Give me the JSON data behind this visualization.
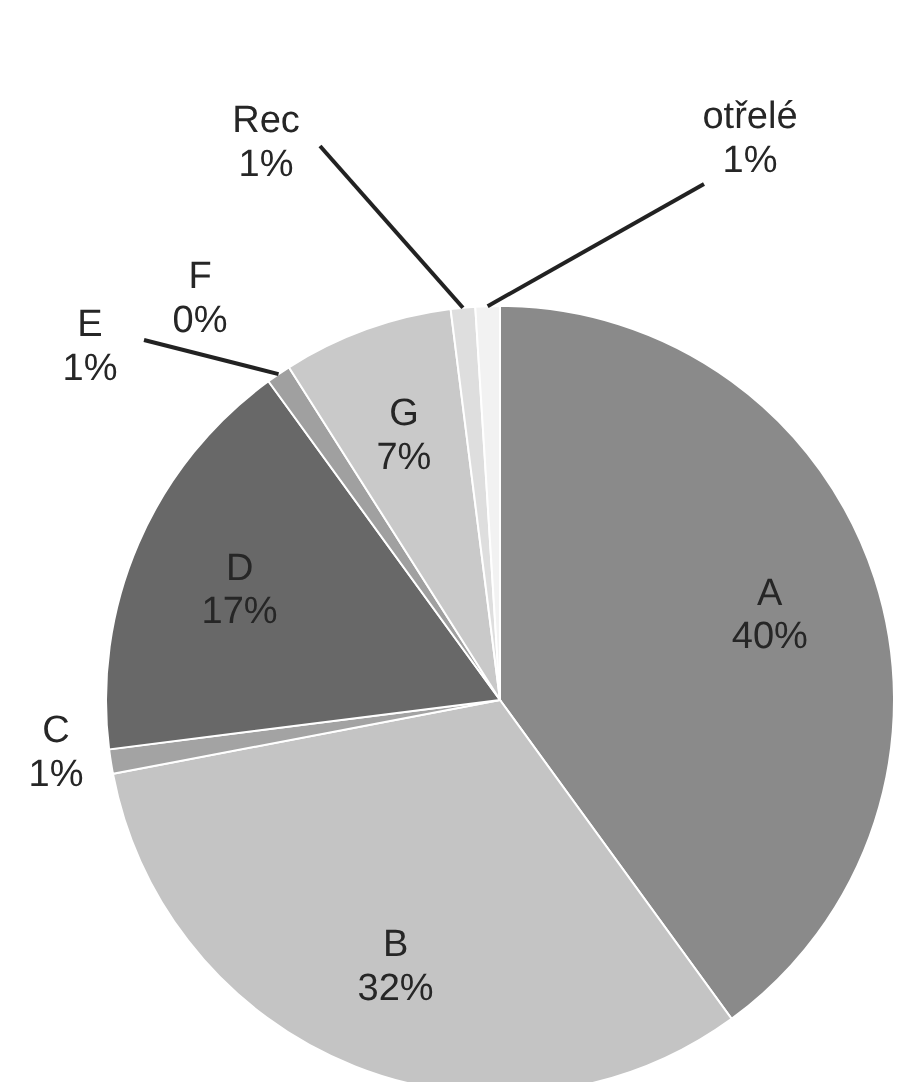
{
  "chart_data": {
    "type": "pie",
    "categories": [
      "A",
      "B",
      "C",
      "D",
      "E",
      "F",
      "G",
      "Rec",
      "otřelé"
    ],
    "values": [
      40,
      32,
      1,
      17,
      1,
      0,
      7,
      1,
      1
    ],
    "value_labels": [
      "40%",
      "32%",
      "1%",
      "17%",
      "1%",
      "0%",
      "7%",
      "1%",
      "1%"
    ],
    "colors": [
      "#8a8a8a",
      "#c4c4c4",
      "#a3a3a3",
      "#686868",
      "#a0a0a0",
      "#b8b8b8",
      "#c9c9c9",
      "#dedede",
      "#f2f2f2"
    ],
    "legend": false
  }
}
